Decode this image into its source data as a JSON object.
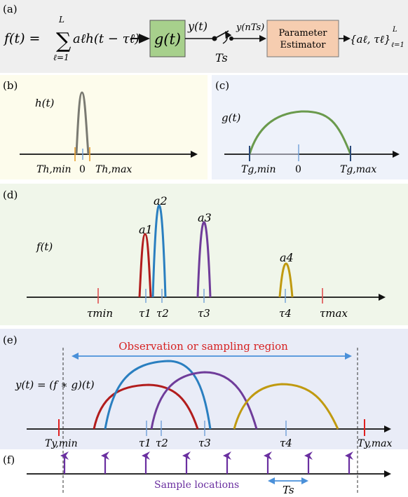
{
  "colors": {
    "panel_a_bg": "#efefef",
    "panel_b_bg": "#fdfcec",
    "panel_c_bg": "#eef2fa",
    "panel_d_bg": "#f0f6ea",
    "panel_e_bg": "#e9ecf7",
    "g_box_fill": "#a7d08c",
    "estimator_box_fill": "#f6cdb0",
    "red": "#b21d1d",
    "blue": "#2a7fc0",
    "purple": "#6f3c9a",
    "gold": "#c09a10",
    "gray_pulse": "#7a7a72",
    "green_curve": "#6a9a4c",
    "region_arrow": "#4a90d9",
    "region_text": "#d62020",
    "sample_arrow": "#6a2fa0",
    "tick_orange": "#e8a030",
    "tick_blue": "#6fa0d8"
  },
  "panels": {
    "a": {
      "label": "(a)",
      "f_lhs": "f(t) =",
      "sum_top": "L",
      "sum_bottom": "ℓ=1",
      "sum_term": "aℓh(t − τℓ)",
      "g_box": "g(t)",
      "y_label": "y(t)",
      "sample_label": "y(nTs)",
      "switch_label": "Ts",
      "estimator_line1": "Parameter",
      "estimator_line2": "Estimator",
      "output": "{aℓ, τℓ}",
      "output_sup": "L",
      "output_sub": "ℓ=1"
    },
    "b": {
      "label": "(b)",
      "func": "h(t)",
      "t_min": "Th,min",
      "zero": "0",
      "t_max": "Th,max"
    },
    "c": {
      "label": "(c)",
      "func": "g(t)",
      "t_min": "Tg,min",
      "zero": "0",
      "t_max": "Tg,max"
    },
    "d": {
      "label": "(d)",
      "func": "f(t)",
      "amps": [
        "a1",
        "a2",
        "a3",
        "a4"
      ],
      "taus": [
        "τ1",
        "τ2",
        "τ3",
        "τ4"
      ],
      "tau_min": "τmin",
      "tau_max": "τmax"
    },
    "e": {
      "label": "(e)",
      "region_text": "Observation or sampling region",
      "func": "y(t) = (f ∗ g)(t)",
      "taus": [
        "τ1",
        "τ2",
        "τ3",
        "τ4"
      ],
      "t_min": "Ty,min",
      "t_max": "Ty,max"
    },
    "f": {
      "label": "(f)",
      "sample_text": "Sample locations",
      "period": "Ts"
    }
  }
}
